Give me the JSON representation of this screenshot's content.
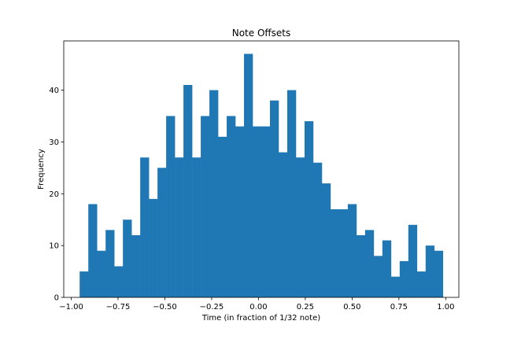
{
  "chart_data": {
    "type": "bar",
    "title": "Note Offsets",
    "xlabel": "Time (in fraction of 1/32 note)",
    "ylabel": "Frequency",
    "xlim": [
      -1.04,
      1.07
    ],
    "ylim": [
      0,
      49.5
    ],
    "x_ticks": [
      -1.0,
      -0.75,
      -0.5,
      -0.25,
      0.0,
      0.25,
      0.5,
      0.75,
      1.0
    ],
    "x_tick_labels": [
      "−1.00",
      "−0.75",
      "−0.50",
      "−0.25",
      "0.00",
      "0.25",
      "0.50",
      "0.75",
      "1.00"
    ],
    "y_ticks": [
      0,
      10,
      20,
      30,
      40
    ],
    "y_tick_labels": [
      "0",
      "10",
      "20",
      "30",
      "40"
    ],
    "bin_start": -0.955,
    "bin_end": 0.985,
    "values": [
      5,
      18,
      9,
      13,
      6,
      15,
      12,
      27,
      19,
      25,
      35,
      27,
      41,
      27,
      35,
      40,
      31,
      35,
      33,
      47,
      33,
      33,
      38,
      28,
      40,
      27,
      34,
      26,
      22,
      17,
      17,
      18,
      12,
      13,
      8,
      11,
      4,
      7,
      14,
      5,
      10,
      9
    ],
    "bar_color": "#1f77b4",
    "grid": false,
    "legend": "none"
  }
}
